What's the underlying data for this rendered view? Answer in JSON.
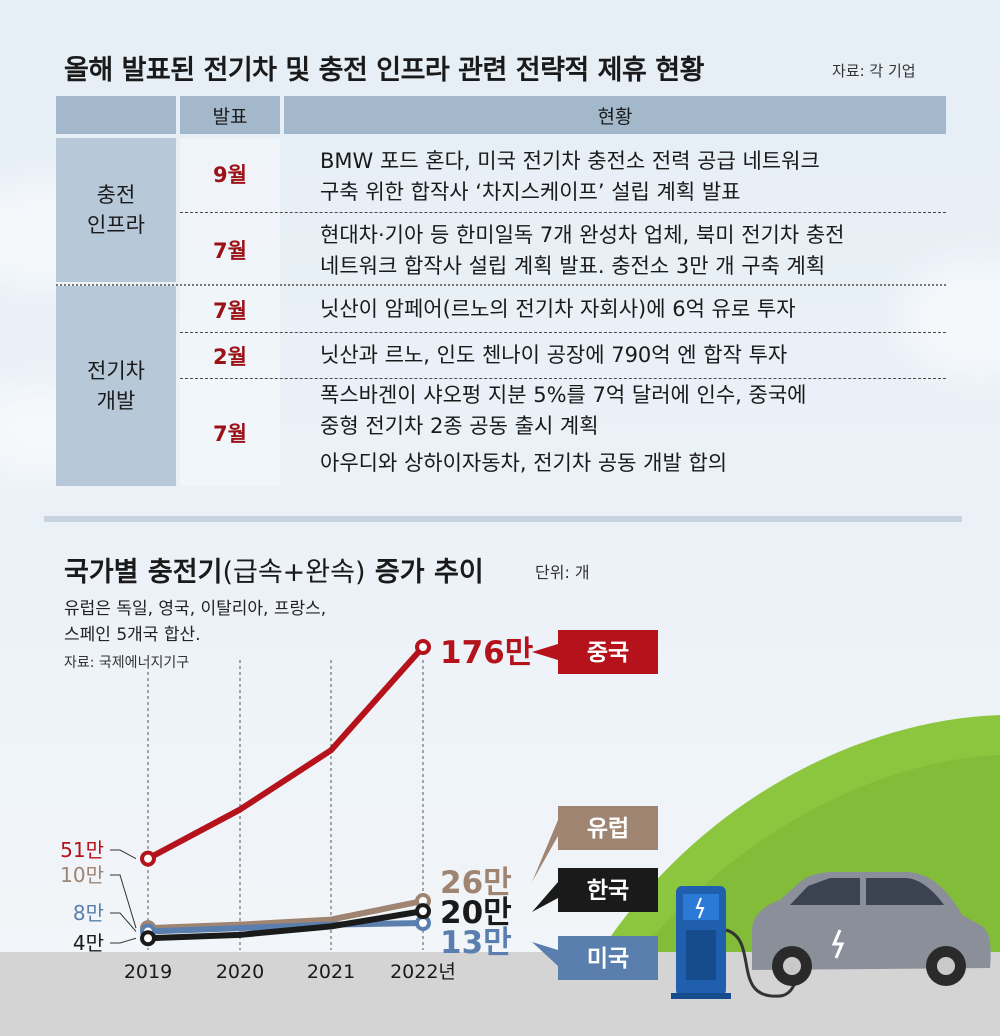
{
  "title": "올해 발표된 전기차 및 충전 인프라 관련 전략적 제휴 현황",
  "source_top": "자료: 각 기업",
  "table": {
    "headers": [
      "발표",
      "현황"
    ],
    "categories": [
      "충전\n인프라",
      "전기차\n개발"
    ],
    "rows": [
      {
        "month": "9월",
        "lines": [
          "BMW 포드 혼다, 미국 전기차 충전소 전력 공급 네트워크",
          "구축 위한 합작사 ‘차지스케이프’ 설립 계획 발표"
        ]
      },
      {
        "month": "7월",
        "lines": [
          "현대차·기아 등 한미일독 7개 완성차 업체, 북미 전기차 충전",
          "네트워크 합작사 설립 계획 발표. 충전소 3만 개 구축 계획"
        ]
      },
      {
        "month": "7월",
        "lines": [
          "닛산이 암페어(르노의 전기차 자회사)에 6억 유로 투자"
        ]
      },
      {
        "month": "2월",
        "lines": [
          "닛산과 르노, 인도 첸나이 공장에 790억 엔 합작 투자"
        ]
      },
      {
        "month": "7월",
        "lines": [
          "폭스바겐이 샤오펑 지분 5%를 7억 달러에 인수, 중국에",
          "중형 전기차 2종 공동 출시 계획",
          "아우디와 상하이자동차, 전기차 공동 개발 합의"
        ]
      }
    ]
  },
  "chart_title": {
    "main": "국가별 충전기",
    "sub": "(급속+완속)",
    "tail": " 증가 추이"
  },
  "chart_unit": "단위: 개",
  "notes": [
    "유럽은 독일, 영국, 이탈리아, 프랑스,",
    "스페인 5개국 합산."
  ],
  "chart_source": "자료: 국제에너지기구",
  "chart_data": {
    "type": "line",
    "x": [
      "2019",
      "2020",
      "2021",
      "2022년"
    ],
    "ylim": [
      0,
      1800000
    ],
    "series": [
      {
        "name": "중국",
        "values": [
          510000,
          800000,
          1150000,
          1760000
        ],
        "color": "#b5121b",
        "start_label": "51만",
        "end_label": "176만"
      },
      {
        "name": "유럽",
        "values": [
          100000,
          120000,
          150000,
          260000
        ],
        "color": "#a08472",
        "start_label": "10만",
        "end_label": "26만"
      },
      {
        "name": "한국",
        "values": [
          40000,
          60000,
          110000,
          200000
        ],
        "color": "#1a1a1a",
        "start_label": "4만",
        "end_label": "20만"
      },
      {
        "name": "미국",
        "values": [
          80000,
          100000,
          120000,
          130000
        ],
        "color": "#5a7fae",
        "start_label": "8만",
        "end_label": "13만"
      }
    ]
  }
}
